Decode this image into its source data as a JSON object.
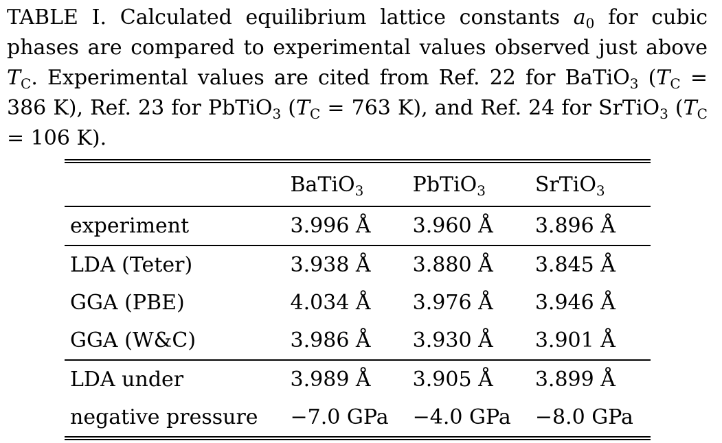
{
  "caption": {
    "label": "TABLE I.",
    "text_a": "Calculated equilibrium lattice constants",
    "sym_a": "a",
    "sym_a_sub": "0",
    "text_b": "for cubic phases are compared to experimental values observed just above",
    "sym_t": "T",
    "sym_t_sub": "C",
    "text_c": ". Experimental values are cited from Ref. 22 for BaTiO",
    "text_c_sub": "3",
    "text_d": "(",
    "text_e": "= 386 K), Ref. 23 for PbTiO",
    "text_e_sub": "3",
    "text_f": "= 763 K), and Ref. 24 for SrTiO",
    "text_f_sub": "3",
    "text_g": "= 106 K)."
  },
  "table": {
    "columns": [
      {
        "base": "BaTiO",
        "sub": "3"
      },
      {
        "base": "PbTiO",
        "sub": "3"
      },
      {
        "base": "SrTiO",
        "sub": "3"
      }
    ],
    "rows": [
      {
        "label": "experiment",
        "values": [
          "3.996 Å",
          "3.960 Å",
          "3.896 Å"
        ]
      },
      {
        "label": "LDA (Teter)",
        "values": [
          "3.938 Å",
          "3.880 Å",
          "3.845 Å"
        ]
      },
      {
        "label": "GGA (PBE)",
        "values": [
          "4.034 Å",
          "3.976 Å",
          "3.946 Å"
        ]
      },
      {
        "label": "GGA (W&C)",
        "values": [
          "3.986 Å",
          "3.930 Å",
          "3.901 Å"
        ]
      },
      {
        "label": "LDA under",
        "values": [
          "3.989 Å",
          "3.905 Å",
          "3.899 Å"
        ]
      },
      {
        "label": "negative pressure",
        "values": [
          "−7.0 GPa",
          "−4.0 GPa",
          "−8.0 GPa"
        ]
      }
    ]
  }
}
